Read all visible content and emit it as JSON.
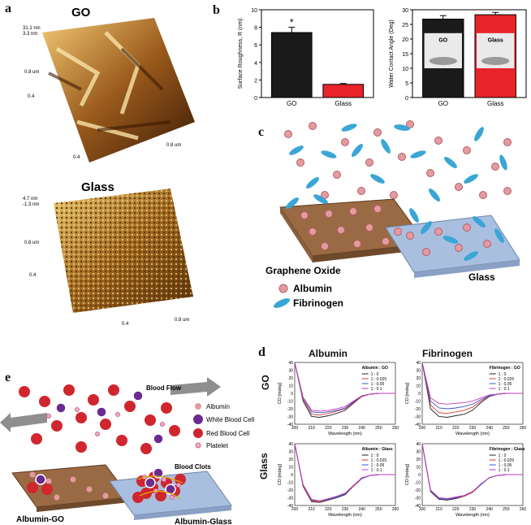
{
  "panels": {
    "a": {
      "label": "a",
      "go_title": "GO",
      "glass_title": "Glass",
      "go_scale": [
        "31.1 nm",
        "3.3 nm"
      ],
      "glass_scale": [
        "4.7 nm",
        "-1.3 nm"
      ],
      "ticks": [
        "0.2",
        "0.4",
        "0.6",
        "0.8 um"
      ]
    },
    "b": {
      "label": "b"
    },
    "c": {
      "label": "c",
      "go_name": "Graphene Oxide",
      "glass_name": "Glass",
      "legend": [
        "Albumin",
        "Fibrinogen"
      ]
    },
    "d": {
      "label": "d",
      "col_titles": [
        "Albumin",
        "Fibrinogen"
      ],
      "row_titles": [
        "GO",
        "Glass"
      ],
      "xlabel": "Wavelength (nm)",
      "ylabel": "CD [mdeg]"
    },
    "e": {
      "label": "e",
      "flow": "Blood Flow",
      "clots": "Blood Clots",
      "left_name": "Albumin-GO",
      "right_name": "Albumin-Glass",
      "legend": [
        "Albumin",
        "White Blood Cell",
        "Red Blood Cell",
        "Platelet"
      ]
    }
  },
  "colors": {
    "go": "#1a1a1a",
    "glass": "#e8232a",
    "albumin": "#e59aa0",
    "fibrinogen": "#3aa6d6",
    "rbc": "#d0262e",
    "wbc": "#6a2c8e",
    "brown": "#8b5a3a",
    "blue": "#9fb7d9"
  },
  "chart_data": [
    {
      "type": "bar",
      "categories": [
        "GO",
        "Glass"
      ],
      "values": [
        7.4,
        1.5
      ],
      "errors": [
        0.6,
        0.1
      ],
      "ylabel": "Surface Roughness, R  (nm)",
      "ylim": [
        0,
        10
      ],
      "yticks": [
        0,
        2,
        4,
        6,
        8,
        10
      ],
      "annotation": "*"
    },
    {
      "type": "bar",
      "categories": [
        "GO",
        "Glass"
      ],
      "values": [
        26.8,
        28.3
      ],
      "errors": [
        1.2,
        0.8
      ],
      "ylabel": "Water Contact Angle (Deg)",
      "ylim": [
        0,
        30
      ],
      "yticks": [
        0,
        5,
        10,
        15,
        20,
        25,
        30
      ],
      "inset_labels": [
        "GO",
        "Glass"
      ]
    },
    {
      "type": "line",
      "legend_title": "Albumin : GO",
      "xlim": [
        200,
        260
      ],
      "ylim": [
        -40,
        40
      ],
      "x": [
        200,
        205,
        210,
        215,
        220,
        225,
        230,
        235,
        240,
        245,
        250,
        255,
        260
      ],
      "series": [
        {
          "name": "1 : 0",
          "values": [
            40,
            -10,
            -30,
            -31,
            -29,
            -26,
            -22,
            -13,
            -4,
            -1,
            0,
            0,
            0
          ]
        },
        {
          "name": "1 : 0.025",
          "values": [
            40,
            -8,
            -27,
            -28,
            -26,
            -23,
            -20,
            -12,
            -4,
            -1,
            0,
            0,
            0
          ]
        },
        {
          "name": "1 : 0.05",
          "values": [
            40,
            -6,
            -24,
            -25,
            -24,
            -22,
            -19,
            -11,
            -3,
            -1,
            0,
            0,
            0
          ]
        },
        {
          "name": "1 : 0.1",
          "values": [
            40,
            -5,
            -22,
            -23,
            -22,
            -20,
            -17,
            -10,
            -3,
            -1,
            0,
            0,
            0
          ]
        }
      ]
    },
    {
      "type": "line",
      "legend_title": "Fibrinogen : GO",
      "xlim": [
        200,
        260
      ],
      "ylim": [
        -40,
        40
      ],
      "x": [
        200,
        205,
        210,
        215,
        220,
        225,
        230,
        235,
        240,
        245,
        250,
        255,
        260
      ],
      "series": [
        {
          "name": "1 : 0",
          "values": [
            40,
            -20,
            -30,
            -31,
            -29,
            -27,
            -22,
            -12,
            -4,
            -1,
            0,
            0,
            0
          ]
        },
        {
          "name": "1 : 0.025",
          "values": [
            40,
            -15,
            -25,
            -26,
            -24,
            -22,
            -18,
            -10,
            -3,
            -1,
            0,
            0,
            0
          ]
        },
        {
          "name": "1 : 0.05",
          "values": [
            40,
            -10,
            -19,
            -20,
            -19,
            -17,
            -14,
            -8,
            -3,
            -1,
            0,
            0,
            0
          ]
        },
        {
          "name": "1 : 0.1",
          "values": [
            40,
            -6,
            -13,
            -14,
            -13,
            -12,
            -10,
            -6,
            -2,
            -1,
            0,
            0,
            0
          ]
        }
      ]
    },
    {
      "type": "line",
      "legend_title": "Albumin : Glass",
      "xlim": [
        200,
        260
      ],
      "ylim": [
        -40,
        40
      ],
      "x": [
        200,
        205,
        210,
        215,
        220,
        225,
        230,
        235,
        240,
        245,
        250,
        255,
        260
      ],
      "series": [
        {
          "name": "1 : 0",
          "values": [
            40,
            -15,
            -35,
            -36,
            -33,
            -30,
            -26,
            -15,
            -5,
            -1,
            0,
            0,
            0
          ]
        },
        {
          "name": "1 : 0.025",
          "values": [
            40,
            -14,
            -34,
            -35,
            -32,
            -29,
            -25,
            -15,
            -5,
            -1,
            0,
            0,
            0
          ]
        },
        {
          "name": "1 : 0.05",
          "values": [
            40,
            -13,
            -33,
            -34,
            -32,
            -29,
            -25,
            -14,
            -5,
            -1,
            0,
            0,
            0
          ]
        },
        {
          "name": "1 : 0.1",
          "values": [
            40,
            -13,
            -32,
            -34,
            -31,
            -28,
            -24,
            -14,
            -4,
            -1,
            0,
            0,
            0
          ]
        }
      ]
    },
    {
      "type": "line",
      "legend_title": "Fibrinogen : Glass",
      "xlim": [
        200,
        260
      ],
      "ylim": [
        -40,
        40
      ],
      "x": [
        200,
        205,
        210,
        215,
        220,
        225,
        230,
        235,
        240,
        245,
        250,
        255,
        260
      ],
      "series": [
        {
          "name": "1 : 0",
          "values": [
            40,
            -22,
            -32,
            -33,
            -31,
            -28,
            -23,
            -13,
            -4,
            -1,
            0,
            0,
            0
          ]
        },
        {
          "name": "1 : 0.025",
          "values": [
            40,
            -21,
            -31,
            -32,
            -30,
            -28,
            -23,
            -13,
            -4,
            -1,
            0,
            0,
            0
          ]
        },
        {
          "name": "1 : 0.05",
          "values": [
            40,
            -21,
            -31,
            -32,
            -30,
            -27,
            -22,
            -13,
            -4,
            -1,
            0,
            0,
            0
          ]
        },
        {
          "name": "1 : 0.1",
          "values": [
            40,
            -20,
            -30,
            -31,
            -29,
            -27,
            -22,
            -12,
            -4,
            -1,
            0,
            0,
            0
          ]
        }
      ]
    }
  ],
  "line_colors": [
    "#222222",
    "#d63a3a",
    "#3a56c8",
    "#c23ac2"
  ]
}
